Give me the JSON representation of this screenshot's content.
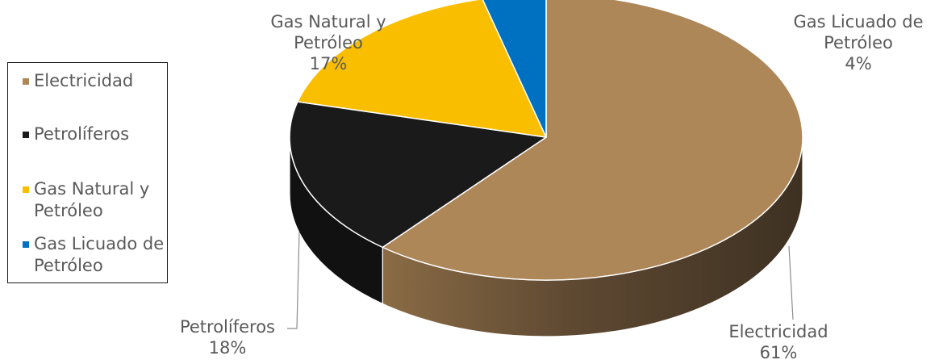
{
  "chart_data": {
    "type": "pie",
    "style": "3d",
    "legend_position": "left",
    "slices": [
      {
        "name": "Electricidad",
        "value": 61,
        "label": "61%",
        "color": "#AE8759",
        "side_color": "#4A3A28"
      },
      {
        "name": "Petrolíferos",
        "value": 18,
        "label": "18%",
        "color": "#1A1A1A",
        "side_color": "#111111"
      },
      {
        "name": "Gas Natural y Petróleo",
        "value": 17,
        "label": "17%",
        "color": "#F9BE00",
        "side_color": "#B08700"
      },
      {
        "name": "Gas Licuado de Petróleo",
        "value": 4,
        "label": "4%",
        "color": "#0070C0",
        "side_color": "#00508A"
      }
    ]
  },
  "legend": {
    "items": [
      {
        "label": "Electricidad",
        "color": "#AE8759"
      },
      {
        "label": "Petrolíferos",
        "color": "#1A1A1A"
      },
      {
        "label": "Gas Natural y Petróleo",
        "color": "#F9BE00"
      },
      {
        "label": "Gas Licuado de Petróleo",
        "color": "#0070C0"
      }
    ]
  },
  "labels": {
    "electricidad": {
      "name": "Electricidad",
      "value": "61%"
    },
    "petroliferos": {
      "name": "Petrolíferos",
      "value": "18%"
    },
    "gas_natural": {
      "name_line1": "Gas Natural y",
      "name_line2": "Petróleo",
      "value": "17%"
    },
    "gas_licuado": {
      "name_line1": "Gas Licuado de",
      "name_line2": "Petróleo",
      "value": "4%"
    }
  }
}
